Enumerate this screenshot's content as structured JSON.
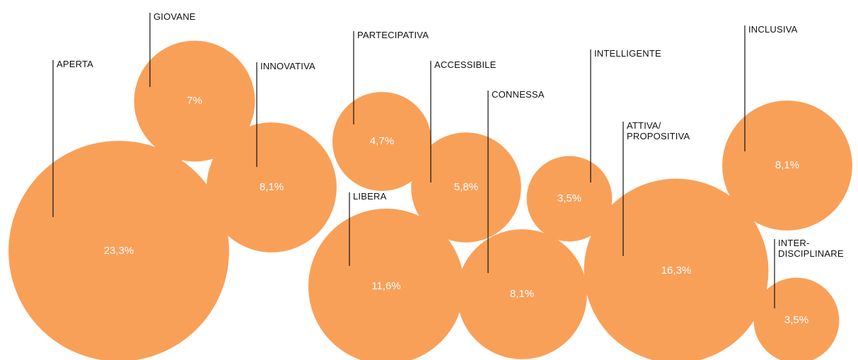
{
  "chart_data": {
    "type": "bubble",
    "categories": [
      "APERTA",
      "GIOVANE",
      "INNOVATIVA",
      "PARTECIPATIVA",
      "ACCESSIBILE",
      "LIBERA",
      "CONNESSA",
      "INTELLIGENTE",
      "ATTIVA/\nPROPOSITIVA",
      "INCLUSIVA",
      "INTER-\nDISCIPLINARE"
    ],
    "values": [
      23.3,
      7,
      8.1,
      4.7,
      5.8,
      11.6,
      8.1,
      3.5,
      16.3,
      8.1,
      3.5
    ],
    "value_labels": [
      "23,3%",
      "7%",
      "8,1%",
      "4,7%",
      "5,8%",
      "11,6%",
      "8,1%",
      "3,5%",
      "16,3%",
      "8,1%",
      "3,5%"
    ],
    "color": "#f9a058"
  }
}
